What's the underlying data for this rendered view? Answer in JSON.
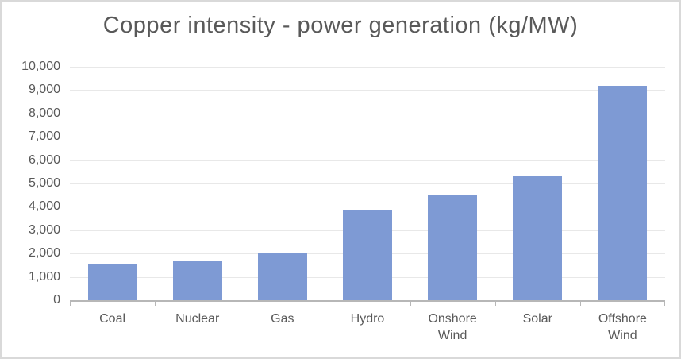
{
  "chart_data": {
    "type": "bar",
    "title": "Copper intensity - power generation (kg/MW)",
    "categories": [
      "Coal",
      "Nuclear",
      "Gas",
      "Hydro",
      "Onshore Wind",
      "Solar",
      "Offshore Wind"
    ],
    "values": [
      1550,
      1700,
      2000,
      3850,
      4500,
      5300,
      9200
    ],
    "xlabel": "",
    "ylabel": "",
    "ylim": [
      0,
      10000
    ],
    "ytick_step": 1000,
    "ytick_labels": [
      "0",
      "1,000",
      "2,000",
      "3,000",
      "4,000",
      "5,000",
      "6,000",
      "7,000",
      "8,000",
      "9,000",
      "10,000"
    ],
    "grid": true,
    "legend": false,
    "colors": {
      "bar": "#7e9ad4",
      "text": "#595959",
      "axis_line": "#b7b7b7",
      "gridline": "#e8e8e8",
      "canvas_border": "#d9d9d9",
      "background": "#ffffff"
    }
  }
}
